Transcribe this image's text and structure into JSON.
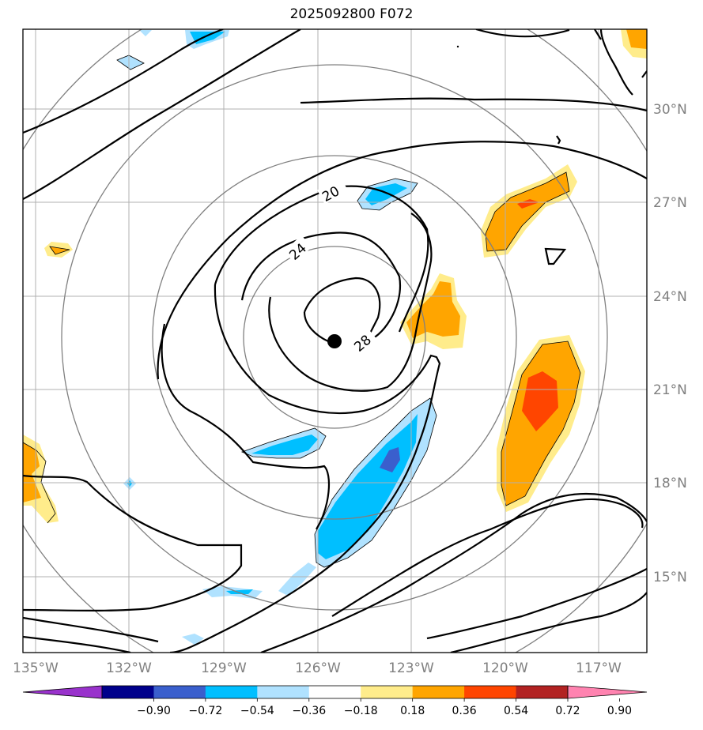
{
  "title": "2025092800 F072",
  "lon_labels": [
    "135°W",
    "132°W",
    "129°W",
    "126°W",
    "123°W",
    "120°W",
    "117°W"
  ],
  "lat_labels": [
    "30°N",
    "27°N",
    "24°N",
    "21°N",
    "18°N",
    "15°N"
  ],
  "contour_labels": [
    "20",
    "24",
    "28"
  ],
  "colorbar": {
    "labels": [
      "−0.90",
      "−0.72",
      "−0.54",
      "−0.36",
      "−0.18",
      "0.18",
      "0.36",
      "0.54",
      "0.72",
      "0.90"
    ],
    "colors": [
      "#9932cc",
      "#00008b",
      "#3a5fcd",
      "#00bfff",
      "#b0e2ff",
      "#ffffff",
      "#ffec8b",
      "#ffa500",
      "#ff4500",
      "#b22222",
      "#ff83b0"
    ]
  },
  "fill_colors": {
    "light_blue": "#b0e2ff",
    "blue": "#00bfff",
    "royal_blue": "#3a5fcd",
    "light_yellow": "#ffec8b",
    "orange": "#ffa500",
    "red_orange": "#ff4500"
  },
  "center_marker": "storm-center-dot"
}
